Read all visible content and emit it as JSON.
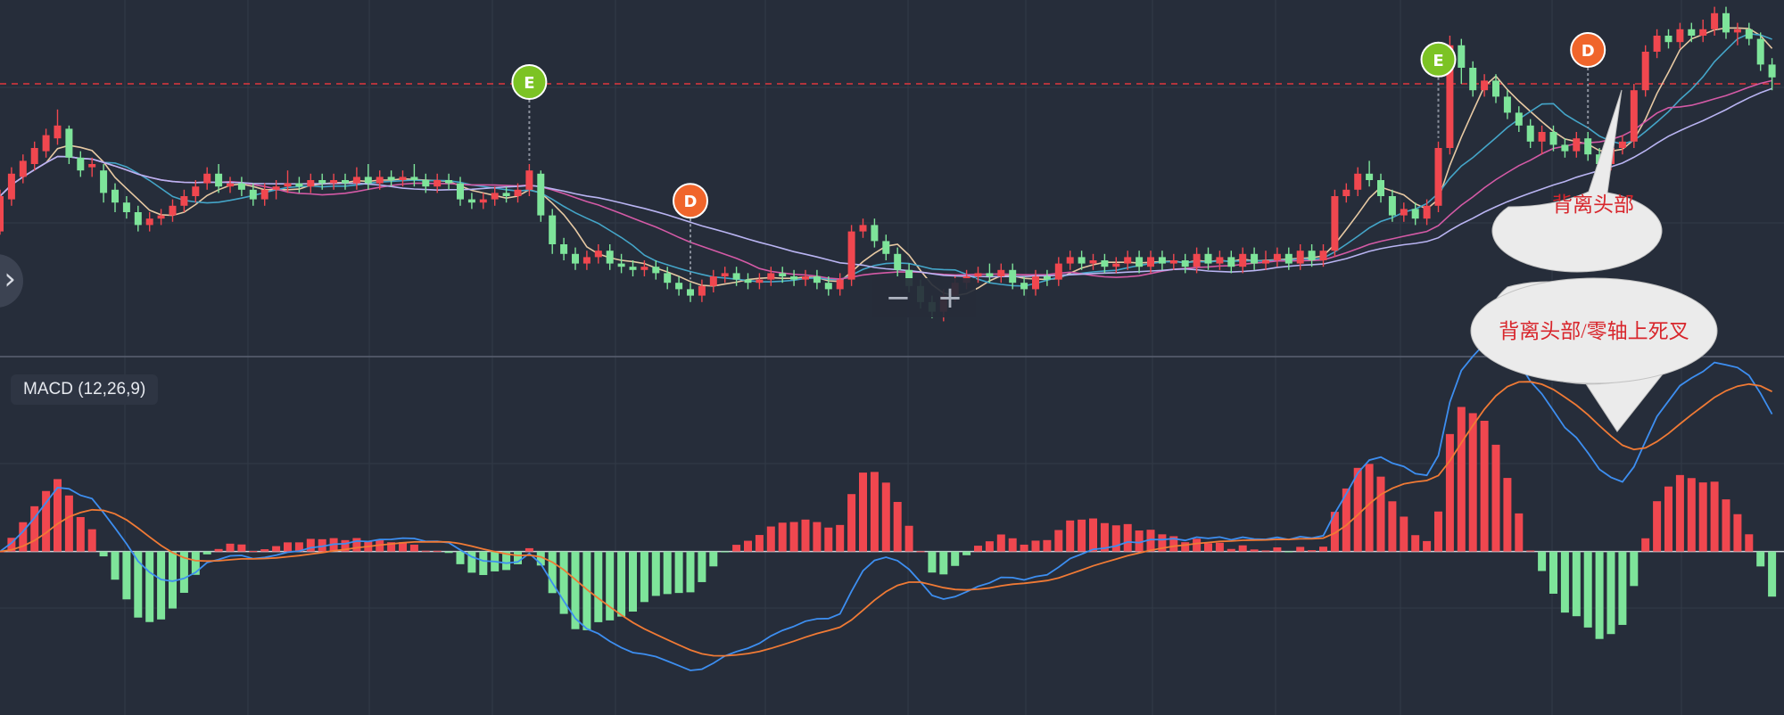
{
  "macd_label": "MACD (12,26,9)",
  "zoom": {
    "minus": "−",
    "plus": "+"
  },
  "nav_arrow": "›",
  "colors": {
    "background": "#262d3a",
    "up": "#f0474f",
    "down": "#7ee49a",
    "ma5": "#e7c9a3",
    "ma10": "#44a5c8",
    "ma20": "#d45aa6",
    "ma30": "#b9b4f2",
    "dif": "#3d8ef0",
    "dea": "#f07a35",
    "resistance": "#e0363c",
    "marker_e": "#7cc324",
    "marker_d": "#f0652b",
    "callout_fill": "#ebebeb",
    "callout_text": "#d8262c"
  },
  "chart_data": [
    {
      "type": "candlestick",
      "title": "",
      "ylim": [
        0,
        100
      ],
      "resistance_level": 80,
      "candles": [
        [
          34,
          45,
          47,
          33
        ],
        [
          44,
          52,
          54,
          42
        ],
        [
          51,
          56,
          58,
          49
        ],
        [
          55,
          60,
          62,
          53
        ],
        [
          59,
          64,
          66,
          57
        ],
        [
          63,
          67,
          72,
          61
        ],
        [
          66,
          57,
          67,
          55
        ],
        [
          57,
          53,
          59,
          51
        ],
        [
          54,
          55,
          57,
          51
        ],
        [
          53,
          46,
          55,
          43
        ],
        [
          47,
          43,
          49,
          40
        ],
        [
          43,
          40,
          45,
          38
        ],
        [
          40,
          36,
          42,
          34
        ],
        [
          36,
          38,
          40,
          34
        ],
        [
          38,
          39,
          41,
          36
        ],
        [
          39,
          42,
          44,
          37
        ],
        [
          42,
          45,
          47,
          40
        ],
        [
          45,
          48,
          50,
          43
        ],
        [
          49,
          52,
          54,
          47
        ],
        [
          52,
          48,
          55,
          46
        ],
        [
          48,
          49,
          51,
          46
        ],
        [
          49,
          47,
          51,
          45
        ],
        [
          47,
          44,
          49,
          42
        ],
        [
          44,
          47,
          49,
          42
        ],
        [
          47,
          48,
          50,
          44
        ],
        [
          48,
          49,
          53,
          46
        ],
        [
          49,
          48,
          51,
          46
        ],
        [
          48,
          50,
          52,
          46
        ],
        [
          50,
          49,
          52,
          47
        ],
        [
          49,
          50,
          52,
          47
        ],
        [
          50,
          49,
          52,
          47
        ],
        [
          49,
          51,
          54,
          47
        ],
        [
          51,
          49,
          55,
          47
        ],
        [
          49,
          51,
          53,
          47
        ],
        [
          51,
          50,
          53,
          48
        ],
        [
          50,
          51,
          53,
          48
        ],
        [
          51,
          50,
          55,
          48
        ],
        [
          50,
          48,
          52,
          46
        ],
        [
          48,
          50,
          52,
          46
        ],
        [
          50,
          49,
          52,
          47
        ],
        [
          49,
          44,
          51,
          42
        ],
        [
          44,
          43,
          46,
          41
        ],
        [
          43,
          44,
          46,
          41
        ],
        [
          44,
          46,
          48,
          42
        ],
        [
          46,
          45,
          48,
          43
        ],
        [
          45,
          47,
          49,
          43
        ],
        [
          47,
          53,
          55,
          45
        ],
        [
          52,
          39,
          53,
          37
        ],
        [
          39,
          30,
          41,
          27
        ],
        [
          30,
          27,
          32,
          25
        ],
        [
          27,
          24,
          29,
          22
        ],
        [
          24,
          26,
          28,
          22
        ],
        [
          26,
          28,
          30,
          24
        ],
        [
          28,
          24,
          30,
          22
        ],
        [
          24,
          23,
          27,
          21
        ],
        [
          23,
          22,
          25,
          20
        ],
        [
          22,
          23,
          25,
          20
        ],
        [
          23,
          21,
          25,
          19
        ],
        [
          21,
          18,
          23,
          16
        ],
        [
          18,
          16,
          20,
          14
        ],
        [
          16,
          14,
          18,
          12
        ],
        [
          14,
          17,
          19,
          12
        ],
        [
          17,
          20,
          22,
          15
        ],
        [
          20,
          21,
          23,
          18
        ],
        [
          21,
          19,
          23,
          17
        ],
        [
          19,
          18,
          21,
          16
        ],
        [
          18,
          19,
          21,
          16
        ],
        [
          19,
          21,
          23,
          17
        ],
        [
          21,
          20,
          23,
          18
        ],
        [
          20,
          19,
          22,
          17
        ],
        [
          19,
          20,
          22,
          17
        ],
        [
          20,
          18,
          22,
          16
        ],
        [
          18,
          16,
          20,
          14
        ],
        [
          16,
          19,
          21,
          14
        ],
        [
          19,
          34,
          36,
          17
        ],
        [
          34,
          36,
          38,
          32
        ],
        [
          36,
          31,
          38,
          29
        ],
        [
          31,
          27,
          33,
          25
        ],
        [
          27,
          22,
          29,
          20
        ],
        [
          22,
          17,
          24,
          15
        ],
        [
          17,
          12,
          19,
          10
        ],
        [
          12,
          9,
          14,
          7
        ],
        [
          9,
          14,
          16,
          6
        ],
        [
          14,
          18,
          20,
          12
        ],
        [
          18,
          20,
          22,
          16
        ],
        [
          20,
          21,
          23,
          18
        ],
        [
          21,
          20,
          24,
          18
        ],
        [
          20,
          22,
          24,
          18
        ],
        [
          22,
          18,
          24,
          16
        ],
        [
          18,
          16,
          20,
          14
        ],
        [
          16,
          20,
          22,
          14
        ],
        [
          20,
          19,
          22,
          17
        ],
        [
          19,
          24,
          26,
          17
        ],
        [
          24,
          26,
          28,
          22
        ],
        [
          26,
          24,
          28,
          22
        ],
        [
          24,
          25,
          27,
          22
        ],
        [
          25,
          23,
          27,
          21
        ],
        [
          23,
          24,
          26,
          21
        ],
        [
          24,
          26,
          28,
          22
        ],
        [
          26,
          23,
          28,
          21
        ],
        [
          23,
          26,
          28,
          21
        ],
        [
          26,
          24,
          28,
          22
        ],
        [
          24,
          25,
          27,
          22
        ],
        [
          25,
          23,
          27,
          21
        ],
        [
          23,
          27,
          29,
          21
        ],
        [
          27,
          24,
          29,
          22
        ],
        [
          24,
          26,
          28,
          22
        ],
        [
          26,
          23,
          28,
          21
        ],
        [
          23,
          27,
          29,
          21
        ],
        [
          27,
          24,
          29,
          22
        ],
        [
          24,
          25,
          28,
          22
        ],
        [
          25,
          27,
          29,
          23
        ],
        [
          27,
          24,
          29,
          22
        ],
        [
          24,
          28,
          30,
          22
        ],
        [
          28,
          25,
          30,
          23
        ],
        [
          25,
          28,
          30,
          23
        ],
        [
          28,
          45,
          47,
          26
        ],
        [
          45,
          47,
          49,
          43
        ],
        [
          47,
          52,
          54,
          45
        ],
        [
          52,
          50,
          56,
          48
        ],
        [
          50,
          45,
          52,
          43
        ],
        [
          45,
          39,
          47,
          37
        ],
        [
          39,
          41,
          43,
          37
        ],
        [
          41,
          38,
          43,
          36
        ],
        [
          38,
          42,
          44,
          36
        ],
        [
          42,
          60,
          62,
          40
        ],
        [
          60,
          92,
          95,
          58
        ],
        [
          92,
          85,
          94,
          80
        ],
        [
          85,
          78,
          87,
          76
        ],
        [
          78,
          81,
          83,
          76
        ],
        [
          81,
          76,
          83,
          74
        ],
        [
          76,
          71,
          78,
          69
        ],
        [
          71,
          67,
          73,
          65
        ],
        [
          67,
          62,
          69,
          60
        ],
        [
          62,
          65,
          67,
          58
        ],
        [
          65,
          61,
          67,
          59
        ],
        [
          61,
          59,
          63,
          57
        ],
        [
          59,
          63,
          65,
          57
        ],
        [
          63,
          58,
          65,
          56
        ],
        [
          58,
          55,
          60,
          53
        ],
        [
          55,
          60,
          62,
          53
        ],
        [
          60,
          62,
          64,
          58
        ],
        [
          62,
          78,
          80,
          60
        ],
        [
          78,
          90,
          92,
          76
        ],
        [
          90,
          95,
          97,
          88
        ],
        [
          95,
          93,
          97,
          91
        ],
        [
          93,
          97,
          99,
          91
        ],
        [
          97,
          95,
          99,
          93
        ],
        [
          95,
          97,
          100,
          93
        ],
        [
          97,
          102,
          104,
          95
        ],
        [
          102,
          96,
          104,
          94
        ],
        [
          96,
          97,
          99,
          92
        ],
        [
          97,
          94,
          99,
          92
        ],
        [
          94,
          86,
          96,
          84
        ],
        [
          86,
          82,
          88,
          78
        ]
      ],
      "signals": [
        {
          "label": "E",
          "index": 46
        },
        {
          "label": "D",
          "index": 60
        },
        {
          "label": "E",
          "index": 125
        },
        {
          "label": "D",
          "index": 138
        }
      ],
      "annotations": [
        "背离头部"
      ]
    },
    {
      "type": "macd",
      "title": "MACD (12,26,9)",
      "ylim": [
        -10,
        11
      ],
      "annotations": [
        "背离头部/零轴上死叉"
      ]
    }
  ]
}
